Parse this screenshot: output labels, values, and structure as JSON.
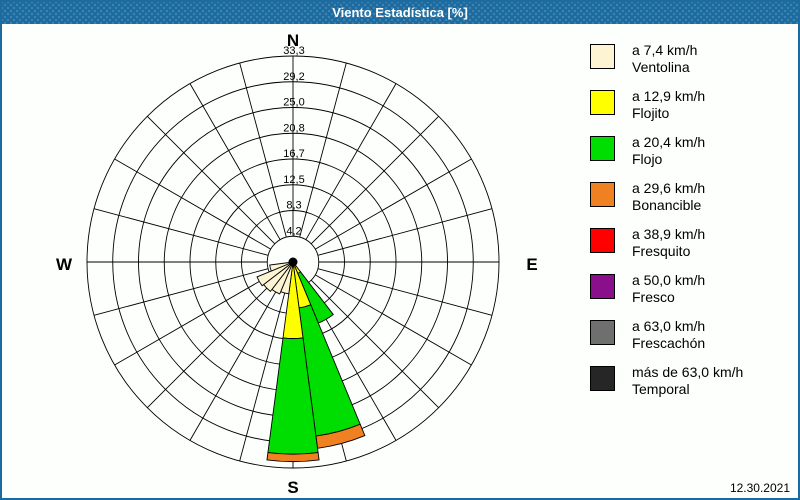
{
  "window": {
    "title": "Viento Estadística [%]",
    "date": "12.30.2021",
    "title_bar_color": "#1c6ba0",
    "border_color": "#1c6ba0"
  },
  "compass": {
    "north": "N",
    "east": "E",
    "south": "S",
    "west": "W"
  },
  "legend": {
    "items": [
      {
        "color": "#FCF4D3",
        "speed": "a 7,4 km/h",
        "name": "Ventolina"
      },
      {
        "color": "#FFFF00",
        "speed": "a 12,9 km/h",
        "name": "Flojito"
      },
      {
        "color": "#00DD00",
        "speed": "a 20,4 km/h",
        "name": "Flojo"
      },
      {
        "color": "#EF8122",
        "speed": "a 29,6 km/h",
        "name": "Bonancible"
      },
      {
        "color": "#FF0000",
        "speed": "a 38,9 km/h",
        "name": "Fresquito"
      },
      {
        "color": "#8A0F8A",
        "speed": "a 50,0 km/h",
        "name": "Fresco"
      },
      {
        "color": "#6F6F6F",
        "speed": "a 63,0 km/h",
        "name": "Frescachón"
      },
      {
        "color": "#262626",
        "speed": "más de 63,0 km/h",
        "name": "Temporal"
      }
    ]
  },
  "chart_data": {
    "type": "wind-rose",
    "units": "%",
    "title": "Viento Estadística [%]",
    "sector_width_deg": 15,
    "rmax": 33.333,
    "rings": [
      4.2,
      8.3,
      12.5,
      16.7,
      20.8,
      25.0,
      29.2,
      33.3
    ],
    "ring_labels": [
      "4,2",
      "8,3",
      "12,5",
      "16,7",
      "20,8",
      "25,0",
      "29,2",
      "33,3"
    ],
    "grid": "on",
    "legend_position": "right",
    "series_names": [
      "Ventolina",
      "Flojito",
      "Flojo",
      "Bonancible"
    ],
    "bars": [
      {
        "screen_angle_deg": 150,
        "dir": "SE",
        "segments": [
          0.4,
          1.6,
          8.7,
          0.0
        ]
      },
      {
        "screen_angle_deg": 165,
        "dir": "SSE",
        "segments": [
          0.5,
          7.0,
          20.9,
          2.0
        ]
      },
      {
        "screen_angle_deg": 180,
        "dir": "S",
        "segments": [
          0.8,
          11.6,
          18.7,
          1.2
        ]
      },
      {
        "screen_angle_deg": 195,
        "dir": "SSW",
        "segments": [
          5.2,
          0,
          0,
          0
        ]
      },
      {
        "screen_angle_deg": 210,
        "dir": "SSW-SW",
        "segments": [
          5.6,
          0,
          0,
          0
        ]
      },
      {
        "screen_angle_deg": 225,
        "dir": "SW",
        "segments": [
          6.0,
          0,
          0,
          0
        ]
      },
      {
        "screen_angle_deg": 240,
        "dir": "WSW",
        "segments": [
          6.3,
          0,
          0,
          0
        ]
      },
      {
        "screen_angle_deg": 255,
        "dir": "W-WSW",
        "segments": [
          3.8,
          0,
          0,
          0
        ]
      }
    ]
  }
}
